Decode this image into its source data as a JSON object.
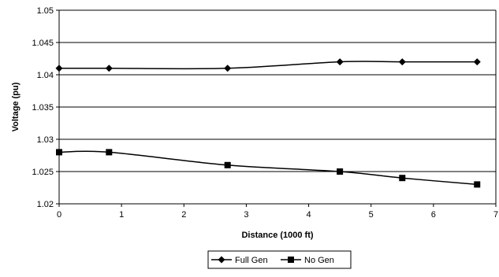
{
  "chart_data": {
    "type": "line",
    "title": "",
    "xlabel": "Distance (1000 ft)",
    "ylabel": "Voltage (pu)",
    "xlim": [
      0,
      7
    ],
    "ylim": [
      1.02,
      1.05
    ],
    "x_ticks": [
      "0",
      "1",
      "2",
      "3",
      "4",
      "5",
      "6",
      "7"
    ],
    "y_ticks": [
      "1.02",
      "1.025",
      "1.03",
      "1.035",
      "1.04",
      "1.045",
      "1.05"
    ],
    "grid": "horizontal",
    "legend_position": "bottom",
    "series": [
      {
        "name": "Full Gen",
        "marker": "diamond",
        "color": "#000000",
        "x": [
          0,
          0.8,
          2.7,
          4.5,
          5.5,
          6.7
        ],
        "y": [
          1.041,
          1.041,
          1.041,
          1.042,
          1.042,
          1.042
        ]
      },
      {
        "name": "No Gen",
        "marker": "square",
        "color": "#000000",
        "x": [
          0,
          0.8,
          2.7,
          4.5,
          5.5,
          6.7
        ],
        "y": [
          1.028,
          1.028,
          1.026,
          1.025,
          1.024,
          1.023
        ]
      }
    ]
  }
}
